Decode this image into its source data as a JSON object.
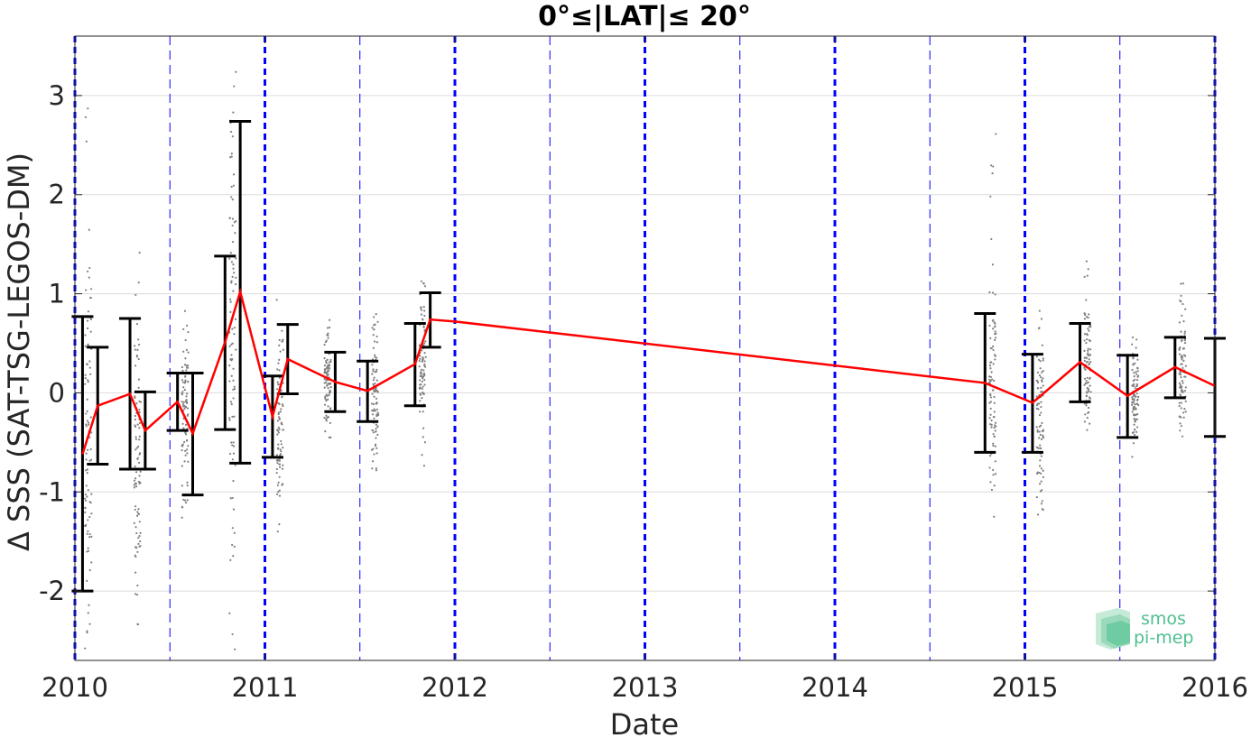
{
  "chart_data": {
    "type": "line",
    "title": "0°≤|LAT|≤ 20°",
    "xlabel": "Date",
    "ylabel": "Δ SSS (SAT-TSG-LEGOS-DM)",
    "xlim": [
      2010,
      2016
    ],
    "ylim": [
      -2.7,
      3.6
    ],
    "x_ticks": [
      2010,
      2011,
      2012,
      2013,
      2014,
      2015,
      2016
    ],
    "x_tick_labels": [
      "2010",
      "2011",
      "2012",
      "2013",
      "2014",
      "2015",
      "2016"
    ],
    "y_ticks": [
      -2,
      -1,
      0,
      1,
      2,
      3
    ],
    "y_tick_labels": [
      "-2",
      "-1",
      "0",
      "1",
      "2",
      "3"
    ],
    "grid": "horizontal",
    "year_lines": [
      2010,
      2011,
      2012,
      2013,
      2014,
      2015,
      2016
    ],
    "half_year_lines": [
      2010.5,
      2011.5,
      2012.5,
      2013.5,
      2014.5,
      2015.5
    ],
    "series": [
      {
        "kind": "mean_with_error_bars",
        "color": "#ff0000",
        "x": [
          2010.04,
          2010.12,
          2010.29,
          2010.37,
          2010.54,
          2010.62,
          2010.79,
          2010.87,
          2011.04,
          2011.12,
          2011.37,
          2011.54,
          2011.79,
          2011.87,
          2012.0,
          2014.79,
          2015.04,
          2015.29,
          2015.54,
          2015.79,
          2016.0
        ],
        "y": [
          -0.62,
          -0.13,
          -0.01,
          -0.38,
          -0.09,
          -0.41,
          0.51,
          1.02,
          -0.24,
          0.34,
          0.11,
          0.02,
          0.29,
          0.74,
          0.72,
          0.1,
          -0.1,
          0.31,
          -0.03,
          0.26,
          0.07
        ],
        "err_low": [
          -2.0,
          -0.72,
          -0.77,
          -0.77,
          -0.38,
          -1.03,
          -0.37,
          -0.71,
          -0.65,
          -0.01,
          -0.19,
          -0.29,
          -0.13,
          0.46,
          null,
          -0.6,
          -0.6,
          -0.09,
          -0.45,
          -0.05,
          -0.44
        ],
        "err_high": [
          0.77,
          0.46,
          0.75,
          0.01,
          0.2,
          0.2,
          1.38,
          2.74,
          0.17,
          0.69,
          0.41,
          0.32,
          0.7,
          1.01,
          null,
          0.8,
          0.39,
          0.7,
          0.38,
          0.56,
          0.55
        ]
      },
      {
        "kind": "scatter_clusters",
        "color": "#808080",
        "clusters": [
          {
            "x": 2010.07,
            "y_min": -2.65,
            "y_max": 2.95,
            "y_center": -0.3
          },
          {
            "x": 2010.33,
            "y_min": -2.45,
            "y_max": 1.55,
            "y_center": -0.6
          },
          {
            "x": 2010.58,
            "y_min": -1.3,
            "y_max": 0.85,
            "y_center": -0.2
          },
          {
            "x": 2010.83,
            "y_min": -2.6,
            "y_max": 3.5,
            "y_center": 0.8
          },
          {
            "x": 2011.08,
            "y_min": -1.4,
            "y_max": 1.1,
            "y_center": -0.3
          },
          {
            "x": 2011.33,
            "y_min": -0.45,
            "y_max": 0.8,
            "y_center": 0.1
          },
          {
            "x": 2011.58,
            "y_min": -0.95,
            "y_max": 0.95,
            "y_center": 0.0
          },
          {
            "x": 2011.83,
            "y_min": -0.8,
            "y_max": 1.15,
            "y_center": 0.3
          },
          {
            "x": 2014.83,
            "y_min": -1.25,
            "y_max": 2.9,
            "y_center": 0.1
          },
          {
            "x": 2015.08,
            "y_min": -1.35,
            "y_max": 0.9,
            "y_center": -0.2
          },
          {
            "x": 2015.33,
            "y_min": -0.45,
            "y_max": 1.45,
            "y_center": 0.3
          },
          {
            "x": 2015.58,
            "y_min": -0.65,
            "y_max": 0.6,
            "y_center": 0.0
          },
          {
            "x": 2015.83,
            "y_min": -0.55,
            "y_max": 1.25,
            "y_center": 0.25
          }
        ]
      }
    ]
  },
  "logo": {
    "line1": "smos",
    "line2": "pi-mep",
    "color": "#4fbf8f"
  },
  "colors": {
    "mean_line": "#ff0000",
    "error_bars": "#000000",
    "scatter": "#808080",
    "year_lines": "#0000ff",
    "grid": "#dcdcdc"
  }
}
